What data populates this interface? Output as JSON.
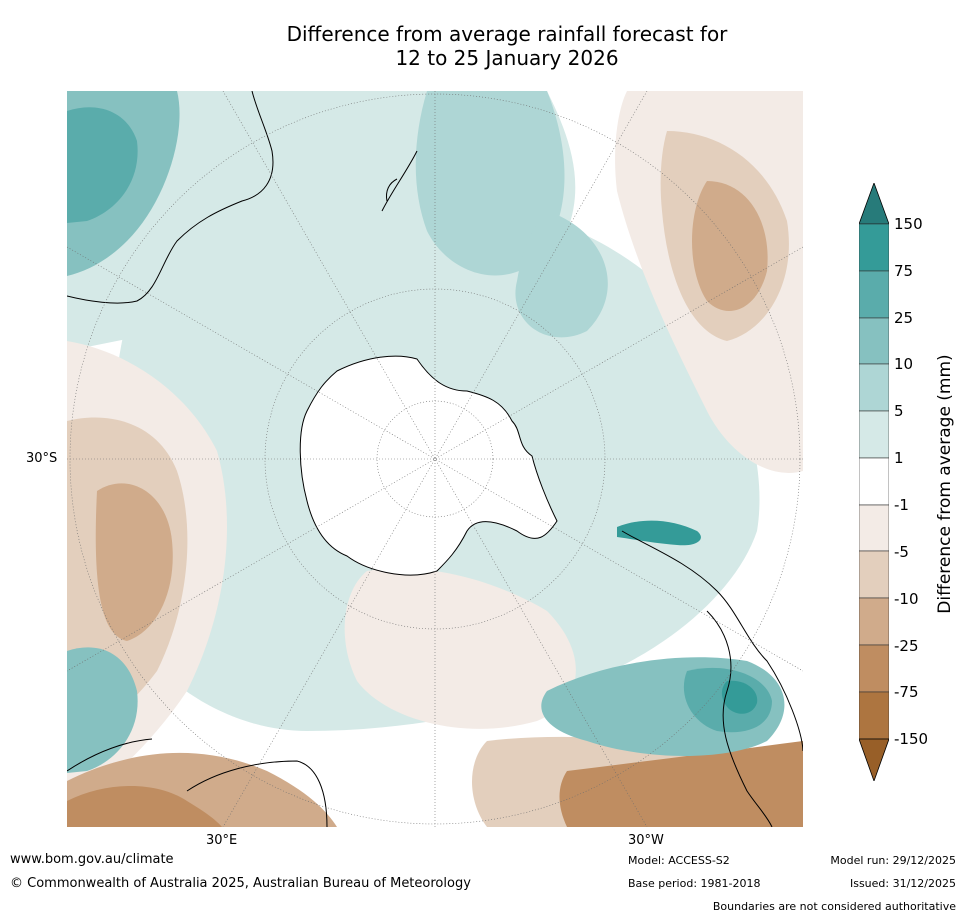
{
  "title": {
    "line1": "Difference from average rainfall forecast for",
    "line2": "12 to 25 January 2026"
  },
  "map": {
    "projection": "south-polar stereographic",
    "axis_labels": {
      "lat": "30°S",
      "lon_left": "30°E",
      "lon_right": "30°W"
    }
  },
  "colorbar": {
    "label": "Difference from average (mm)",
    "ticks": [
      "150",
      "75",
      "25",
      "10",
      "5",
      "1",
      "-1",
      "-5",
      "-10",
      "-25",
      "-75",
      "-150"
    ],
    "colors": {
      "above_150": "#277b7a",
      "75_150": "#349b98",
      "25_75": "#5aacab",
      "10_25": "#86c1c0",
      "5_10": "#aed6d5",
      "1_5": "#d5e9e7",
      "neutral": "#ffffff",
      "m5_m1": "#f3ebe6",
      "m10_m5": "#e3cfbd",
      "m25_m10": "#d0ab8b",
      "m75_m25": "#bf8d61",
      "m150_m75": "#ad7540",
      "below_m150": "#985f28"
    }
  },
  "footer": {
    "website": "www.bom.gov.au/climate",
    "copyright": "© Commonwealth of Australia 2025, Australian Bureau of Meteorology",
    "model": "Model: ACCESS-S2",
    "base_period": "Base period: 1981-2018",
    "model_run": "Model run: 29/12/2025",
    "issued": "Issued: 31/12/2025",
    "boundaries": "Boundaries are not considered authoritative"
  }
}
